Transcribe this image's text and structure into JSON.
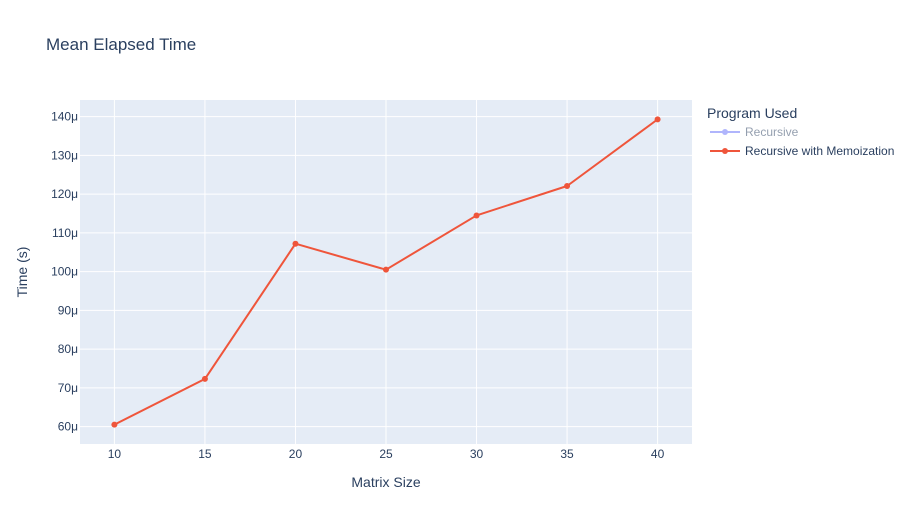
{
  "chart_data": {
    "type": "line",
    "title": "Mean Elapsed Time",
    "xlabel": "Matrix Size",
    "ylabel": "Time (s)",
    "xlim": [
      8.1,
      41.9
    ],
    "ylim": [
      5.55e-05,
      0.0001443
    ],
    "x_ticks": [
      10,
      15,
      20,
      25,
      30,
      35,
      40
    ],
    "x_tick_labels": [
      "10",
      "15",
      "20",
      "25",
      "30",
      "35",
      "40"
    ],
    "y_ticks": [
      6e-05,
      7e-05,
      8e-05,
      9e-05,
      0.0001,
      0.00011,
      0.00012,
      0.00013,
      0.00014
    ],
    "y_tick_labels": [
      "60μ",
      "70μ",
      "80μ",
      "90μ",
      "100μ",
      "110μ",
      "120μ",
      "130μ",
      "140μ"
    ],
    "grid": true,
    "legend_title": "Program Used",
    "legend_position": "top-right outside",
    "series": [
      {
        "name": "Recursive",
        "color": "#636efa",
        "visible": "legendonly",
        "x": [],
        "y": []
      },
      {
        "name": "Recursive with Memoization",
        "color": "#ef553b",
        "visible": true,
        "x": [
          10,
          15,
          20,
          25,
          30,
          35,
          40
        ],
        "y": [
          6.05e-05,
          7.23e-05,
          0.0001072,
          0.0001005,
          0.0001145,
          0.0001221,
          0.0001393
        ]
      }
    ]
  },
  "colors": {
    "plot_background": "#e5ecf6",
    "grid": "#ffffff",
    "text": "#2a3f5f"
  }
}
